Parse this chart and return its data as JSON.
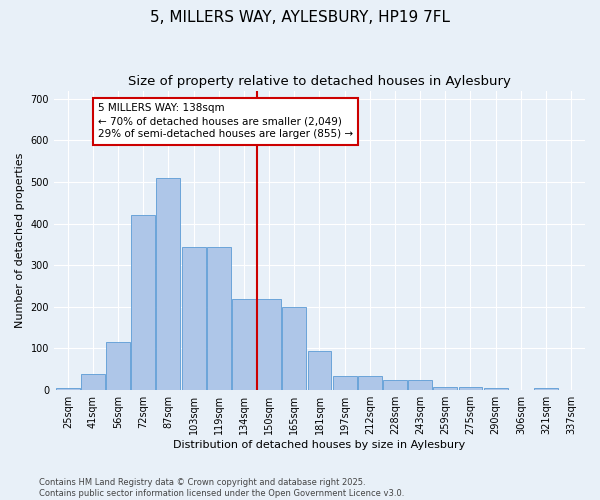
{
  "title": "5, MILLERS WAY, AYLESBURY, HP19 7FL",
  "subtitle": "Size of property relative to detached houses in Aylesbury",
  "xlabel": "Distribution of detached houses by size in Aylesbury",
  "ylabel": "Number of detached properties",
  "footer_line1": "Contains HM Land Registry data © Crown copyright and database right 2025.",
  "footer_line2": "Contains public sector information licensed under the Open Government Licence v3.0.",
  "categories": [
    "25sqm",
    "41sqm",
    "56sqm",
    "72sqm",
    "87sqm",
    "103sqm",
    "119sqm",
    "134sqm",
    "150sqm",
    "165sqm",
    "181sqm",
    "197sqm",
    "212sqm",
    "228sqm",
    "243sqm",
    "259sqm",
    "275sqm",
    "290sqm",
    "306sqm",
    "321sqm",
    "337sqm"
  ],
  "values": [
    5,
    38,
    115,
    420,
    510,
    345,
    345,
    220,
    220,
    200,
    93,
    35,
    35,
    25,
    25,
    8,
    8,
    5,
    0,
    5,
    0
  ],
  "bar_color": "#aec6e8",
  "bar_edge_color": "#5b9bd5",
  "vline_x_index": 7,
  "vline_color": "#cc0000",
  "annotation_text": "5 MILLERS WAY: 138sqm\n← 70% of detached houses are smaller (2,049)\n29% of semi-detached houses are larger (855) →",
  "annotation_box_color": "#ffffff",
  "annotation_box_edge": "#cc0000",
  "ylim": [
    0,
    720
  ],
  "yticks": [
    0,
    100,
    200,
    300,
    400,
    500,
    600,
    700
  ],
  "bg_color": "#e8f0f8",
  "grid_color": "#ffffff",
  "title_fontsize": 11,
  "subtitle_fontsize": 9.5,
  "axis_label_fontsize": 8,
  "tick_fontsize": 7,
  "annotation_fontsize": 7.5
}
